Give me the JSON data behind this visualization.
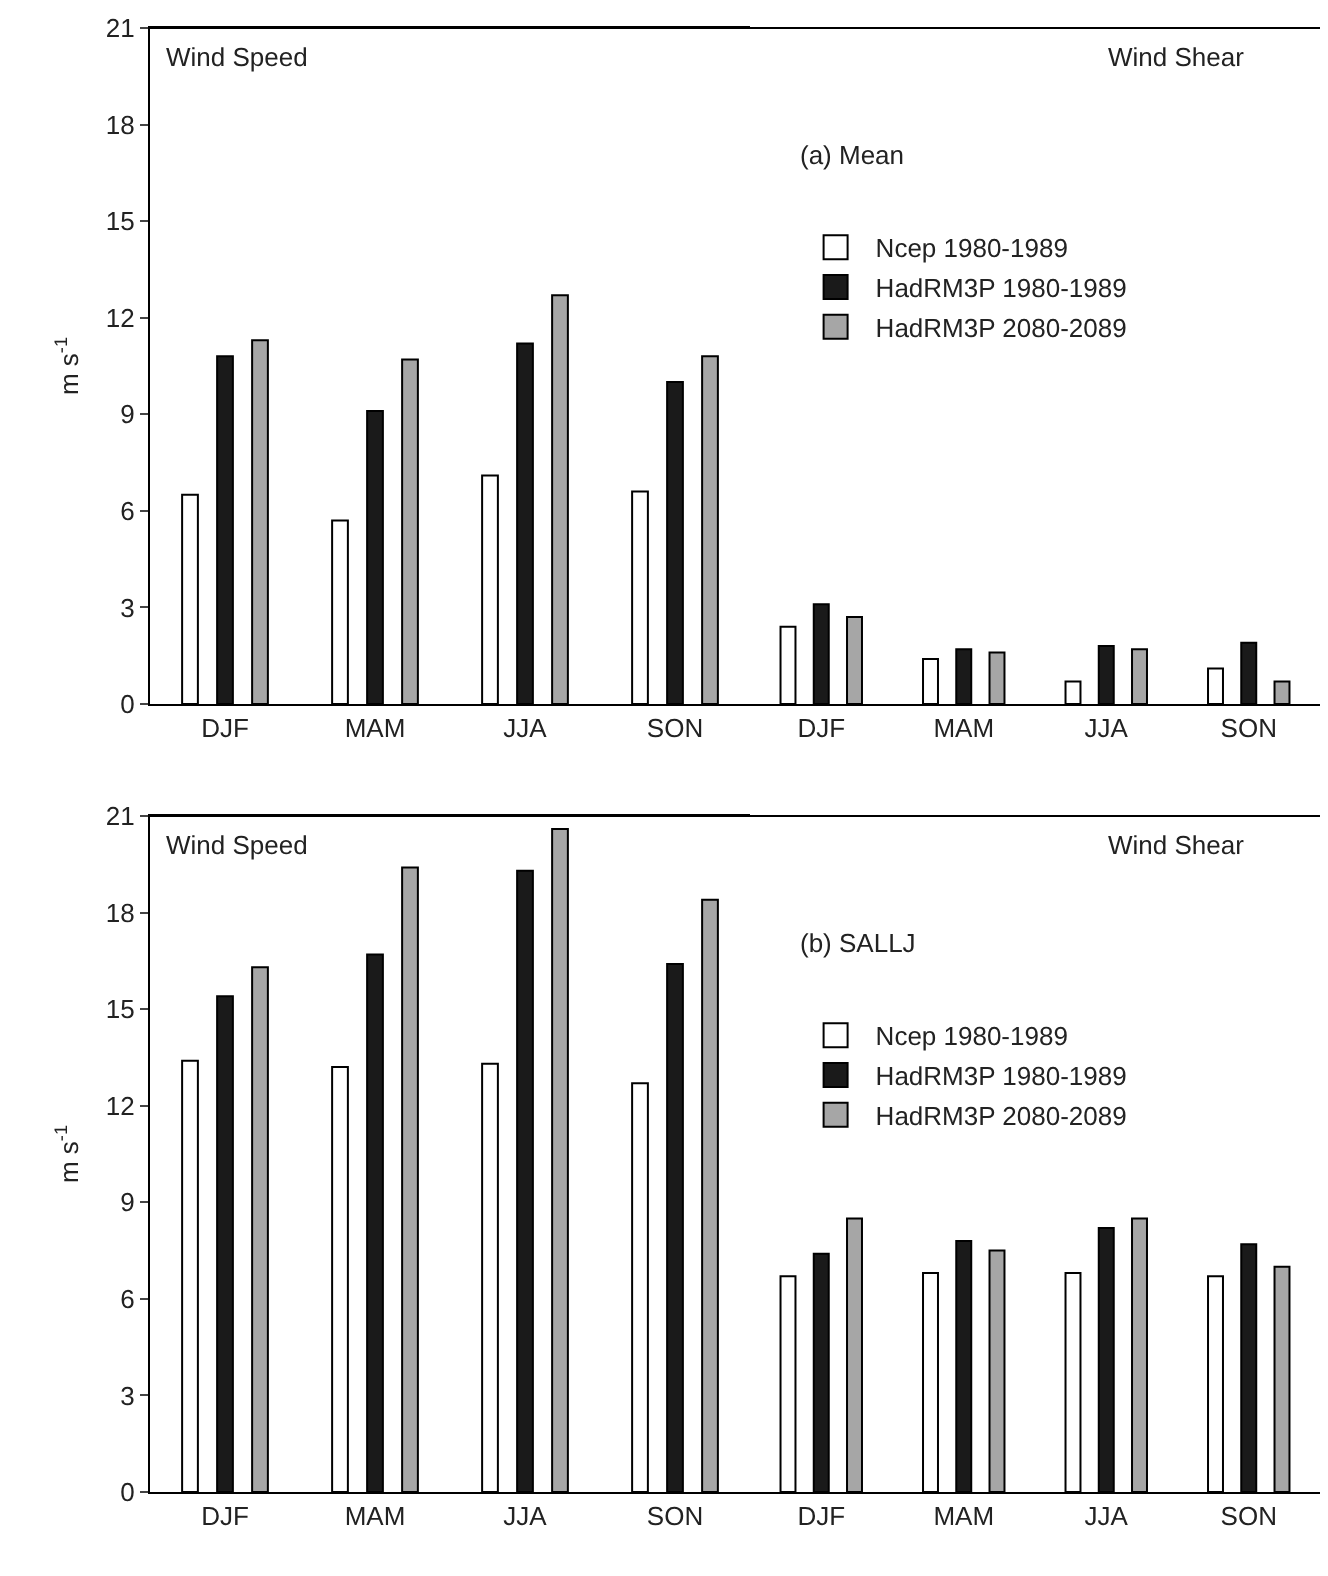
{
  "chart_data": [
    {
      "type": "bar",
      "categories": [
        "DJF",
        "MAM",
        "JJA",
        "SON"
      ],
      "ylabel": "m s$^{-1}$",
      "ylim": [
        0,
        21
      ],
      "yticks": [
        0,
        3,
        6,
        9,
        12,
        15,
        18,
        21
      ],
      "legend": false,
      "annotations": [
        "Wind Speed"
      ],
      "series": [
        {
          "color": "#ffffff",
          "values": [
            6.5,
            5.7,
            7.1,
            6.6
          ]
        },
        {
          "color": "#1a1a1a",
          "values": [
            10.8,
            9.1,
            11.2,
            10.0
          ]
        },
        {
          "color": "#a6a6a6",
          "values": [
            11.3,
            10.7,
            12.7,
            10.8
          ]
        }
      ]
    },
    {
      "type": "bar",
      "categories": [
        "DJF",
        "MAM",
        "JJA",
        "SON"
      ],
      "ylim": [
        0,
        21
      ],
      "yticks": [
        0,
        3,
        6,
        9,
        12,
        15,
        18,
        21
      ],
      "tick_labels": "x",
      "legend": "left",
      "annotations": [
        "Wind Shear",
        "(a) Mean"
      ],
      "series": [
        {
          "name": "Ncep 1980-1989",
          "color": "#ffffff",
          "values": [
            2.4,
            1.4,
            0.7,
            1.1
          ]
        },
        {
          "name": "HadRM3P 1980-1989",
          "color": "#1a1a1a",
          "values": [
            3.1,
            1.7,
            1.8,
            1.9
          ]
        },
        {
          "name": "HadRM3P 2080-2089",
          "color": "#a6a6a6",
          "values": [
            2.7,
            1.6,
            1.7,
            0.7
          ]
        }
      ]
    },
    {
      "type": "bar",
      "categories": [
        "DJF",
        "MAM",
        "JJA",
        "SON"
      ],
      "ylabel": "m s$^{-1}$",
      "ylim": [
        0,
        21
      ],
      "yticks": [
        0,
        3,
        6,
        9,
        12,
        15,
        18,
        21
      ],
      "legend": false,
      "annotations": [
        "Wind Speed"
      ],
      "series": [
        {
          "color": "#ffffff",
          "values": [
            13.4,
            13.2,
            13.3,
            12.7
          ]
        },
        {
          "color": "#1a1a1a",
          "values": [
            15.4,
            16.7,
            19.3,
            16.4
          ]
        },
        {
          "color": "#a6a6a6",
          "values": [
            16.3,
            19.4,
            20.6,
            18.4
          ]
        }
      ]
    },
    {
      "type": "bar",
      "categories": [
        "DJF",
        "MAM",
        "JJA",
        "SON"
      ],
      "ylim": [
        0,
        21
      ],
      "yticks": [
        0,
        3,
        6,
        9,
        12,
        15,
        18,
        21
      ],
      "tick_labels": "x",
      "legend": "left",
      "annotations": [
        "Wind Shear",
        "(b) SALLJ"
      ],
      "series": [
        {
          "name": "Ncep 1980-1989",
          "color": "#ffffff",
          "values": [
            6.7,
            6.8,
            6.8,
            6.7
          ]
        },
        {
          "name": "HadRM3P 1980-1989",
          "color": "#1a1a1a",
          "values": [
            7.4,
            7.8,
            8.2,
            7.7
          ]
        },
        {
          "name": "HadRM3P 2080-2089",
          "color": "#a6a6a6",
          "values": [
            8.5,
            7.5,
            8.5,
            7.0
          ]
        }
      ]
    }
  ]
}
